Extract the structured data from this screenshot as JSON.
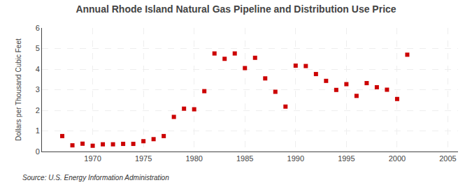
{
  "chart_data": {
    "type": "scatter",
    "title": "Annual Rhode Island Natural Gas Pipeline and Distribution Use Price",
    "ylabel": "Dollars per Thousand Cubic Feet",
    "source": "Source: U.S. Energy Information Administration",
    "x": [
      1967,
      1968,
      1969,
      1970,
      1971,
      1972,
      1973,
      1974,
      1975,
      1976,
      1977,
      1978,
      1979,
      1980,
      1981,
      1982,
      1983,
      1984,
      1985,
      1986,
      1987,
      1988,
      1989,
      1990,
      1991,
      1992,
      1993,
      1994,
      1995,
      1996,
      1997,
      1998,
      1999,
      2000,
      2001
    ],
    "values": [
      0.75,
      0.3,
      0.38,
      0.28,
      0.35,
      0.35,
      0.37,
      0.37,
      0.5,
      0.6,
      0.75,
      1.68,
      2.08,
      2.05,
      2.93,
      4.76,
      4.5,
      4.76,
      4.05,
      4.55,
      3.55,
      2.9,
      2.18,
      4.17,
      4.15,
      3.76,
      3.43,
      2.99,
      3.27,
      2.7,
      3.32,
      3.12,
      3.0,
      2.55,
      4.7
    ],
    "color": "#cc0000",
    "marker": "square",
    "xlim": [
      1965,
      2006
    ],
    "ylim": [
      0,
      6
    ],
    "xticks": [
      1970,
      1975,
      1980,
      1985,
      1990,
      1995,
      2000,
      2005
    ],
    "yticks": [
      0,
      1,
      2,
      3,
      4,
      5,
      6
    ],
    "grid": true
  }
}
